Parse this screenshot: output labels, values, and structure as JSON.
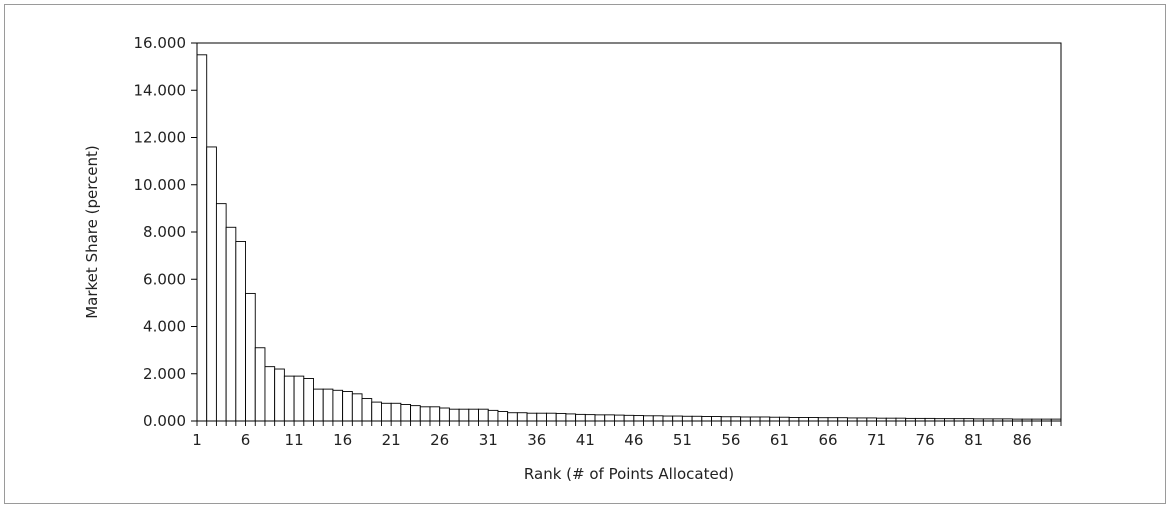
{
  "chart_data": {
    "type": "bar",
    "title": "",
    "xlabel": "Rank (# of Points Allocated)",
    "ylabel": "Market Share (percent)",
    "ylim": [
      0,
      16
    ],
    "y_ticks": [
      "0.000",
      "2.000",
      "4.000",
      "6.000",
      "8.000",
      "10.000",
      "12.000",
      "14.000",
      "16.000"
    ],
    "x_tick_labels": [
      "1",
      "6",
      "11",
      "16",
      "21",
      "26",
      "31",
      "36",
      "41",
      "46",
      "51",
      "56",
      "61",
      "66",
      "71",
      "76",
      "81",
      "86"
    ],
    "grid": false,
    "bar_fill": "#ffffff",
    "bar_stroke": "#000000",
    "categories": [
      1,
      2,
      3,
      4,
      5,
      6,
      7,
      8,
      9,
      10,
      11,
      12,
      13,
      14,
      15,
      16,
      17,
      18,
      19,
      20,
      21,
      22,
      23,
      24,
      25,
      26,
      27,
      28,
      29,
      30,
      31,
      32,
      33,
      34,
      35,
      36,
      37,
      38,
      39,
      40,
      41,
      42,
      43,
      44,
      45,
      46,
      47,
      48,
      49,
      50,
      51,
      52,
      53,
      54,
      55,
      56,
      57,
      58,
      59,
      60,
      61,
      62,
      63,
      64,
      65,
      66,
      67,
      68,
      69,
      70,
      71,
      72,
      73,
      74,
      75,
      76,
      77,
      78,
      79,
      80,
      81,
      82,
      83,
      84,
      85,
      86,
      87,
      88,
      89
    ],
    "values": [
      15.5,
      11.6,
      9.2,
      8.2,
      7.6,
      5.4,
      3.1,
      2.3,
      2.2,
      1.9,
      1.9,
      1.8,
      1.35,
      1.35,
      1.3,
      1.25,
      1.15,
      0.95,
      0.8,
      0.75,
      0.75,
      0.7,
      0.65,
      0.6,
      0.6,
      0.55,
      0.5,
      0.5,
      0.5,
      0.5,
      0.45,
      0.4,
      0.35,
      0.35,
      0.33,
      0.33,
      0.33,
      0.32,
      0.3,
      0.28,
      0.27,
      0.26,
      0.26,
      0.25,
      0.24,
      0.23,
      0.22,
      0.22,
      0.21,
      0.21,
      0.2,
      0.2,
      0.19,
      0.19,
      0.18,
      0.18,
      0.17,
      0.17,
      0.17,
      0.16,
      0.16,
      0.15,
      0.15,
      0.15,
      0.14,
      0.14,
      0.14,
      0.13,
      0.13,
      0.13,
      0.12,
      0.12,
      0.12,
      0.11,
      0.11,
      0.11,
      0.1,
      0.1,
      0.1,
      0.1,
      0.09,
      0.09,
      0.09,
      0.09,
      0.08,
      0.08,
      0.08,
      0.08,
      0.08
    ]
  }
}
